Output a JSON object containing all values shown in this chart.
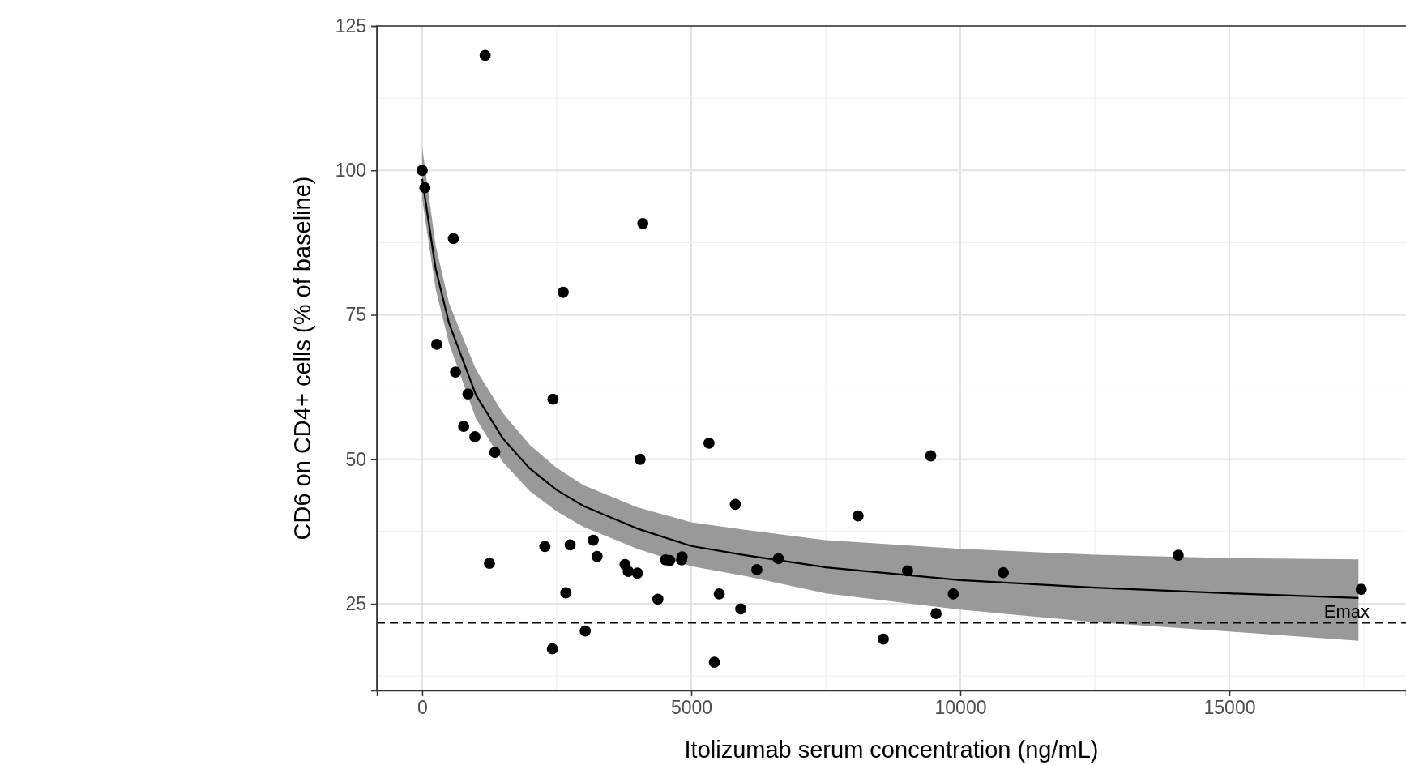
{
  "chart_data": {
    "type": "scatter",
    "xlabel": "Itolizumab serum concentration (ng/mL)",
    "ylabel": "CD6 on CD4+ cells (% of baseline)",
    "xlim": [
      -843,
      18283
    ],
    "xticks": [
      0,
      5000,
      10000,
      15000
    ],
    "ylim": [
      10,
      125
    ],
    "yticks": [
      25,
      50,
      75,
      100,
      125
    ],
    "grid": true,
    "marker": "circle",
    "series": [
      {
        "type": "scatter",
        "color": "#000000",
        "x": [
          0,
          50,
          1170,
          580,
          270,
          620,
          850,
          770,
          980,
          1350,
          1250,
          2430,
          2620,
          4100,
          4050,
          2280,
          2750,
          3180,
          3250,
          2670,
          2420,
          3030,
          3770,
          3830,
          4000,
          4380,
          4520,
          4600,
          4820,
          4830,
          5330,
          5520,
          5820,
          5430,
          5920,
          6220,
          6620,
          8100,
          8570,
          9020,
          9450,
          9550,
          9870,
          10800,
          14050,
          17450
        ],
        "values": [
          100,
          97,
          119.9,
          88.2,
          69.9,
          65.1,
          61.3,
          55.7,
          53.9,
          51.2,
          32,
          60.4,
          78.9,
          90.8,
          50,
          34.9,
          35.2,
          36,
          33.2,
          26.9,
          17.2,
          20.3,
          31.8,
          30.6,
          30.3,
          25.8,
          32.6,
          32.5,
          32.6,
          33.1,
          52.8,
          26.7,
          42.2,
          14.9,
          24.1,
          30.9,
          32.8,
          40.2,
          18.9,
          30.7,
          50.6,
          23.3,
          26.7,
          30.4,
          33.4,
          27.5
        ]
      },
      {
        "type": "line",
        "color": "#000000",
        "marker": "none",
        "x": [
          0,
          250,
          500,
          1000,
          1500,
          2000,
          2500,
          3000,
          4000,
          5000,
          6000,
          7500,
          10000,
          12500,
          15000,
          17400
        ],
        "values": [
          98.5,
          83,
          73.5,
          61.1,
          53.6,
          48.4,
          44.7,
          41.9,
          38,
          35,
          33.4,
          31.3,
          29.1,
          27.8,
          26.8,
          26
        ],
        "lower": [
          95,
          79.5,
          70,
          57,
          49.5,
          44.5,
          41,
          38.3,
          34.5,
          31.5,
          29.8,
          26.8,
          24,
          21.8,
          20.2,
          18.6
        ],
        "upper": [
          104,
          87,
          77,
          65.5,
          58,
          52.5,
          48.5,
          45.5,
          41.7,
          39.1,
          37.8,
          36,
          34.5,
          33.5,
          32.9,
          32.7
        ]
      }
    ],
    "ref_lines": [
      {
        "axis": "y",
        "value": 21.7,
        "label": "Emax",
        "color": "#000000",
        "line_style": "dashed"
      }
    ]
  }
}
